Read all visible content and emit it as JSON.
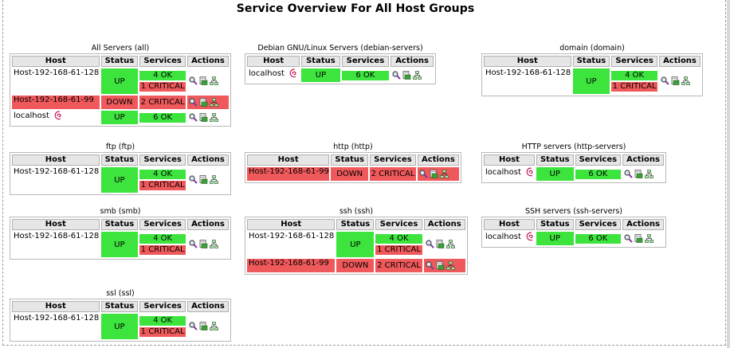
{
  "page_title": "Service Overview For All Host Groups",
  "headers": {
    "host": "Host",
    "status": "Status",
    "services": "Services",
    "actions": "Actions"
  },
  "colors": {
    "up": "#3ee43e",
    "down": "#f0595b",
    "header": "#e6e6e6"
  },
  "icons": [
    "magnifier-icon",
    "notes-icon",
    "network-map-icon",
    "debian-swirl-icon"
  ],
  "groups": {
    "all": {
      "title": "All Servers (all)",
      "rows": [
        {
          "host": "Host-192-168-61-128",
          "status": "UP",
          "ok": "4 OK",
          "critical": "1 CRITICAL"
        },
        {
          "host": "Host-192-168-61-99",
          "status": "DOWN",
          "critical": "2 CRITICAL"
        },
        {
          "host": "localhost",
          "status": "UP",
          "ok": "6 OK"
        }
      ]
    },
    "debian": {
      "title": "Debian GNU/Linux Servers (debian-servers)",
      "rows": [
        {
          "host": "localhost",
          "status": "UP",
          "ok": "6 OK"
        }
      ]
    },
    "domain": {
      "title": "domain (domain)",
      "rows": [
        {
          "host": "Host-192-168-61-128",
          "status": "UP",
          "ok": "4 OK",
          "critical": "1 CRITICAL"
        }
      ]
    },
    "ftp": {
      "title": "ftp (ftp)",
      "rows": [
        {
          "host": "Host-192-168-61-128",
          "status": "UP",
          "ok": "4 OK",
          "critical": "1 CRITICAL"
        }
      ]
    },
    "http": {
      "title": "http (http)",
      "rows": [
        {
          "host": "Host-192-168-61-99",
          "status": "DOWN",
          "critical": "2 CRITICAL"
        }
      ]
    },
    "httpservers": {
      "title": "HTTP servers (http-servers)",
      "rows": [
        {
          "host": "localhost",
          "status": "UP",
          "ok": "6 OK"
        }
      ]
    },
    "smb": {
      "title": "smb (smb)",
      "rows": [
        {
          "host": "Host-192-168-61-128",
          "status": "UP",
          "ok": "4 OK",
          "critical": "1 CRITICAL"
        }
      ]
    },
    "ssh": {
      "title": "ssh (ssh)",
      "rows": [
        {
          "host": "Host-192-168-61-128",
          "status": "UP",
          "ok": "4 OK",
          "critical": "1 CRITICAL"
        },
        {
          "host": "Host-192-168-61-99",
          "status": "DOWN",
          "critical": "2 CRITICAL"
        }
      ]
    },
    "sshservers": {
      "title": "SSH servers (ssh-servers)",
      "rows": [
        {
          "host": "localhost",
          "status": "UP",
          "ok": "6 OK"
        }
      ]
    },
    "ssl": {
      "title": "ssl (ssl)",
      "rows": [
        {
          "host": "Host-192-168-61-128",
          "status": "UP",
          "ok": "4 OK",
          "critical": "1 CRITICAL"
        }
      ]
    }
  }
}
